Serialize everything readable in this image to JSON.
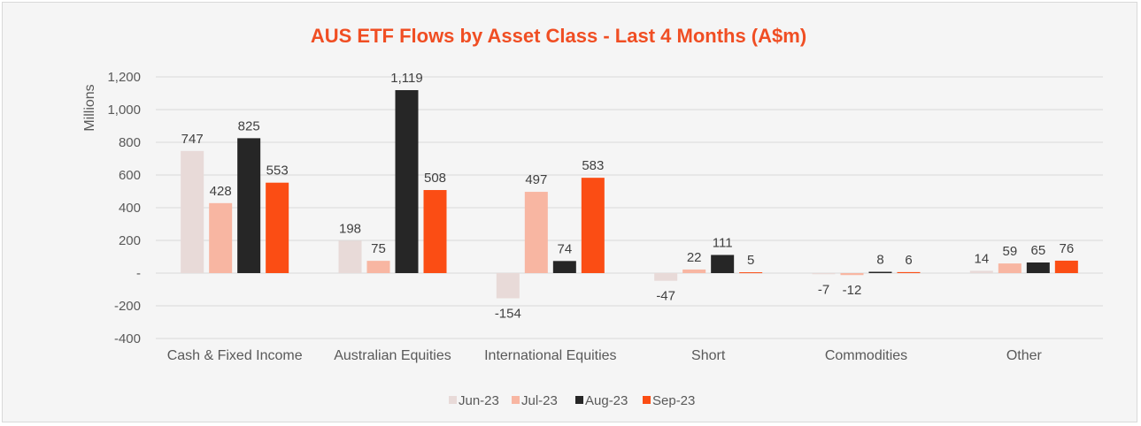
{
  "chart_data": {
    "type": "bar",
    "title": "AUS ETF Flows by Asset Class - Last 4 Months (A$m)",
    "ylabel": "Millions",
    "xlabel": "",
    "ylim": [
      -400,
      1200
    ],
    "yticks": [
      1200,
      1000,
      800,
      600,
      400,
      200,
      0,
      -200,
      -400
    ],
    "ytick_labels": [
      "1,200",
      "1,000",
      "800",
      "600",
      "400",
      "200",
      "-",
      "-200",
      "-400"
    ],
    "grid": true,
    "legend_position": "bottom",
    "categories": [
      "Cash & Fixed Income",
      "Australian Equities",
      "International Equities",
      "Short",
      "Commodities",
      "Other"
    ],
    "series": [
      {
        "name": "Jun-23",
        "color": "#e8dad8",
        "values": [
          747,
          198,
          -154,
          -47,
          -7,
          14
        ],
        "labels": [
          "747",
          "198",
          "-154",
          "-47",
          "-7",
          "14"
        ]
      },
      {
        "name": "Jul-23",
        "color": "#f8b6a2",
        "values": [
          428,
          75,
          497,
          22,
          -12,
          59
        ],
        "labels": [
          "428",
          "75",
          "497",
          "22",
          "-12",
          "59"
        ]
      },
      {
        "name": "Aug-23",
        "color": "#262626",
        "values": [
          825,
          1119,
          74,
          111,
          8,
          65
        ],
        "labels": [
          "825",
          "1,119",
          "74",
          "111",
          "8",
          "65"
        ]
      },
      {
        "name": "Sep-23",
        "color": "#fb4d14",
        "values": [
          553,
          508,
          583,
          5,
          6,
          76
        ],
        "labels": [
          "553",
          "508",
          "583",
          "5",
          "6",
          "76"
        ]
      }
    ],
    "title_color": "#f04e23",
    "grid_color": "#d9d9d9"
  }
}
